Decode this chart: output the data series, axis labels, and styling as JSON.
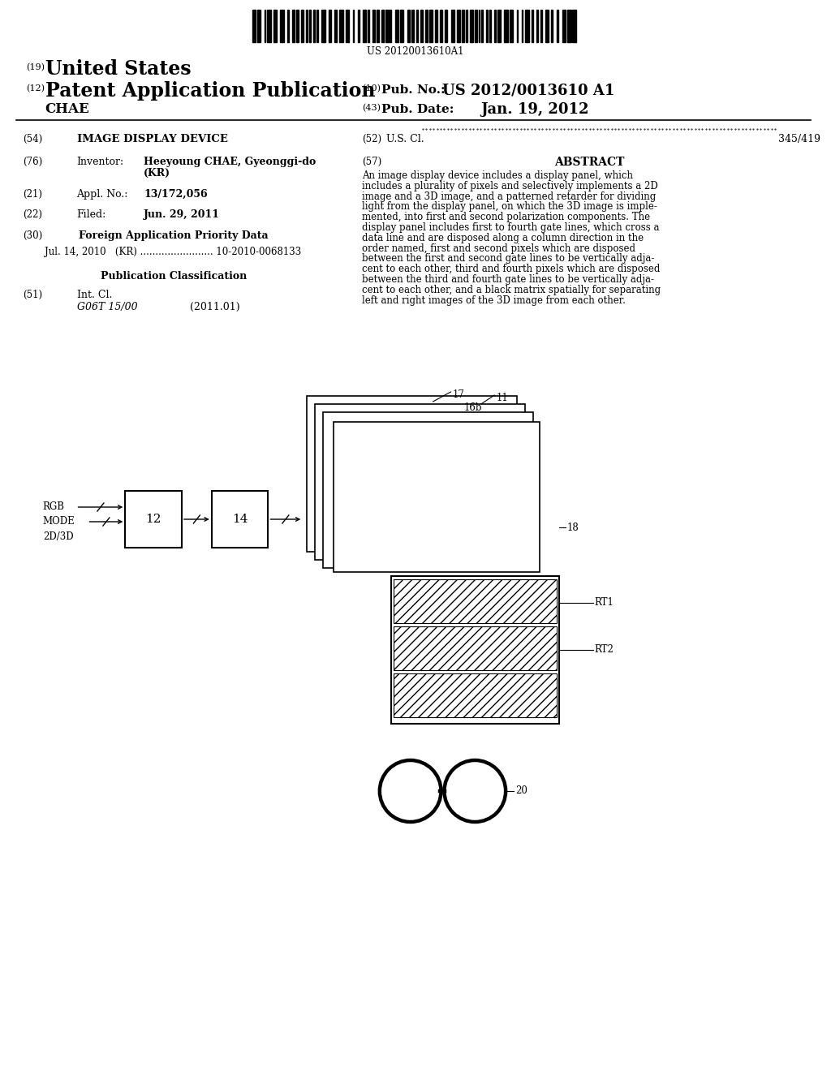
{
  "bg_color": "#ffffff",
  "barcode_text": "US 20120013610A1",
  "pub_no": "US 2012/0013610 A1",
  "pub_date": "Jan. 19, 2012",
  "name_left": "CHAE",
  "field54_label": "IMAGE DISPLAY DEVICE",
  "field52_val": "345/419",
  "field76_val_line1": "Heeyoung CHAE, Gyeonggi-do",
  "field76_val_line2": "(KR)",
  "field57_label": "ABSTRACT",
  "abstract_text": "An image display device includes a display panel, which includes a plurality of pixels and selectively implements a 2D image and a 3D image, and a patterned retarder for dividing light from the display panel, on which the 3D image is implemented, into first and second polarization components. The display panel includes first to fourth gate lines, which cross a data line and are disposed along a column direction in the order named, first and second pixels which are disposed between the first and second gate lines to be vertically adjacent to each other, third and fourth pixels which are disposed between the third and fourth gate lines to be vertically adjacent to each other, and a black matrix spatially for separating left and right images of the 3D image from each other.",
  "field21_val": "13/172,056",
  "field22_val": "Jun. 29, 2011",
  "field30_detail": "Jul. 14, 2010   (KR) ........................ 10-2010-0068133",
  "pub_class_label": "Publication Classification",
  "field51_val_italic": "G06T 15/00",
  "field51_val_year": "(2011.01)"
}
